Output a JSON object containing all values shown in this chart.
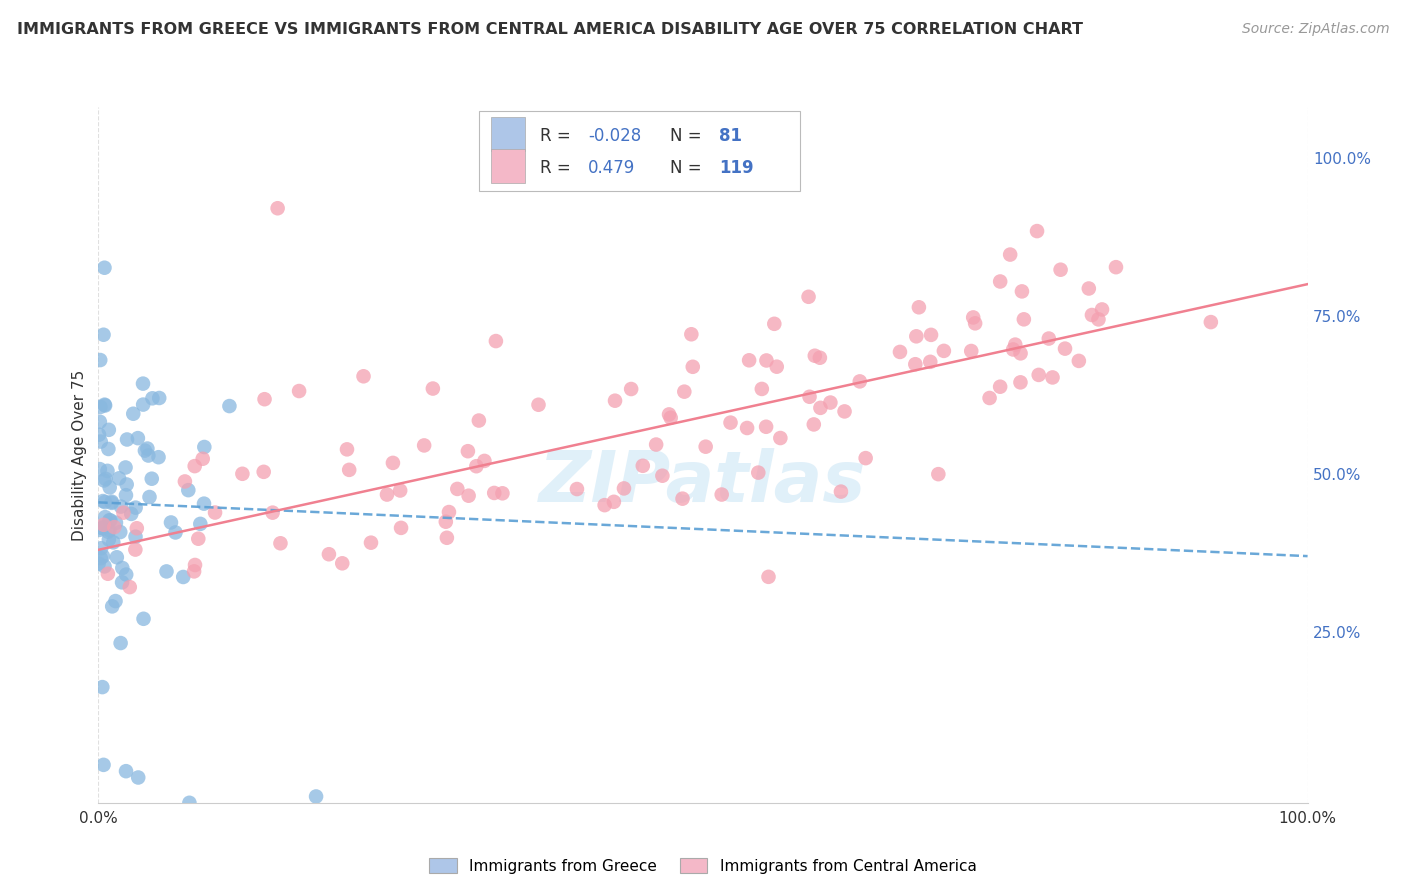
{
  "title": "IMMIGRANTS FROM GREECE VS IMMIGRANTS FROM CENTRAL AMERICA DISABILITY AGE OVER 75 CORRELATION CHART",
  "source": "Source: ZipAtlas.com",
  "ylabel": "Disability Age Over 75",
  "right_ytick_labels": [
    "25.0%",
    "50.0%",
    "75.0%",
    "100.0%"
  ],
  "right_ytick_values": [
    0.25,
    0.5,
    0.75,
    1.0
  ],
  "greece_color": "#89b8df",
  "central_america_color": "#f4a0b0",
  "greece_line_color": "#5a9fd4",
  "central_america_line_color": "#f08090",
  "greece_R": -0.028,
  "greece_N": 81,
  "central_america_R": 0.479,
  "central_america_N": 119,
  "xlim": [
    0.0,
    1.0
  ],
  "ylim": [
    -0.02,
    1.08
  ],
  "background_color": "#ffffff",
  "grid_color": "#dddddd",
  "watermark": "ZIPatlas",
  "seed": 42,
  "legend_blue_color": "#aec6e8",
  "legend_pink_color": "#f4b8c8",
  "r_text_color": "#4472c4",
  "n_text_color": "#4472c4"
}
